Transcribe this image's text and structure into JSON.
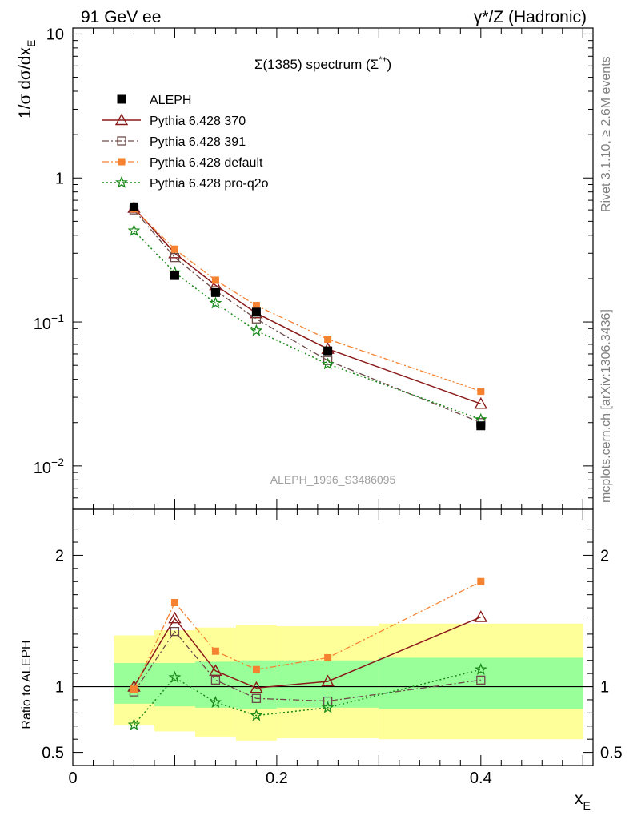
{
  "header": {
    "left": "91 GeV ee",
    "right": "γ*/Z (Hadronic)"
  },
  "side_texts": {
    "rivet": "Rivet 3.1.10, ≥ 2.6M events",
    "mcplots": "mcplots.cern.ch [arXiv:1306.3436]"
  },
  "colors": {
    "aleph": "#000000",
    "p370": "#8b1a1a",
    "p391": "#6e4a4a",
    "pdefault": "#f58231",
    "pq2o": "#1a8a1a",
    "band_inner": "#99ff99",
    "band_outer": "#ffff99"
  },
  "chart_data": [
    {
      "type": "line",
      "title": "Σ(1385) spectrum (Σ*±)",
      "title_main": "Σ(1385) spectrum (Σ",
      "title_sup": "*±",
      "title_close": ")",
      "ylabel": "1/σ dσ/dx_E",
      "ylabel_main": "1/σ dσ/dx",
      "ylabel_sub": "E",
      "yscale": "log",
      "xlim": [
        0,
        0.51
      ],
      "ylim": [
        0.005,
        11
      ],
      "yticks": [
        {
          "value": 10,
          "label": "10"
        },
        {
          "value": 1,
          "label": "1"
        },
        {
          "value": 0.1,
          "base": "10",
          "exp": "−1"
        },
        {
          "value": 0.01,
          "base": "10",
          "exp": "−2"
        }
      ],
      "watermark": "ALEPH_1996_S3486095",
      "legend_position": "top-left",
      "x": [
        0.06,
        0.1,
        0.14,
        0.18,
        0.25,
        0.4
      ],
      "series": [
        {
          "name": "ALEPH",
          "values": [
            0.63,
            0.21,
            0.16,
            0.117,
            0.063,
            0.019
          ],
          "style": "data"
        },
        {
          "name": "Pythia 6.428 370",
          "values": [
            0.62,
            0.3,
            0.18,
            0.115,
            0.065,
            0.027
          ],
          "style": "p370"
        },
        {
          "name": "Pythia 6.428 391",
          "values": [
            0.6,
            0.28,
            0.165,
            0.105,
            0.054,
            0.02
          ],
          "style": "p391"
        },
        {
          "name": "Pythia 6.428 default",
          "values": [
            0.61,
            0.32,
            0.195,
            0.13,
            0.076,
            0.033
          ],
          "style": "pdefault"
        },
        {
          "name": "Pythia 6.428 pro-q2o",
          "values": [
            0.43,
            0.22,
            0.135,
            0.087,
            0.051,
            0.021
          ],
          "style": "pq2o"
        }
      ]
    },
    {
      "type": "line",
      "ylabel": "Ratio to ALEPH",
      "xlabel": "x_E",
      "xlabel_main": "x",
      "xlabel_sub": "E",
      "ylim": [
        0.4,
        2.35
      ],
      "yticks": [
        {
          "value": 2,
          "label": "2"
        },
        {
          "value": 1,
          "label": "1"
        },
        {
          "value": 0.5,
          "label": "0.5"
        }
      ],
      "xticks": [
        {
          "value": 0,
          "label": "0"
        },
        {
          "value": 0.2,
          "label": "0.2"
        },
        {
          "value": 0.4,
          "label": "0.4"
        }
      ],
      "reference_line": 1,
      "bins": [
        {
          "lo": 0.04,
          "hi": 0.08,
          "inner": [
            0.87,
            1.18
          ],
          "outer": [
            0.71,
            1.39
          ]
        },
        {
          "lo": 0.08,
          "hi": 0.12,
          "inner": [
            0.85,
            1.18
          ],
          "outer": [
            0.66,
            1.43
          ]
        },
        {
          "lo": 0.12,
          "hi": 0.16,
          "inner": [
            0.84,
            1.19
          ],
          "outer": [
            0.62,
            1.45
          ]
        },
        {
          "lo": 0.16,
          "hi": 0.2,
          "inner": [
            0.83,
            1.2
          ],
          "outer": [
            0.59,
            1.47
          ]
        },
        {
          "lo": 0.2,
          "hi": 0.3,
          "inner": [
            0.84,
            1.2
          ],
          "outer": [
            0.61,
            1.46
          ]
        },
        {
          "lo": 0.3,
          "hi": 0.5,
          "inner": [
            0.83,
            1.22
          ],
          "outer": [
            0.6,
            1.48
          ]
        }
      ],
      "x": [
        0.06,
        0.1,
        0.14,
        0.18,
        0.25,
        0.4
      ],
      "series": [
        {
          "name": "Pythia 6.428 370",
          "values": [
            1.0,
            1.52,
            1.12,
            0.99,
            1.04,
            1.53
          ],
          "style": "p370"
        },
        {
          "name": "Pythia 6.428 391",
          "values": [
            0.96,
            1.42,
            1.05,
            0.91,
            0.89,
            1.05
          ],
          "style": "p391"
        },
        {
          "name": "Pythia 6.428 default",
          "values": [
            0.98,
            1.64,
            1.27,
            1.13,
            1.22,
            1.8
          ],
          "style": "pdefault"
        },
        {
          "name": "Pythia 6.428 pro-q2o",
          "values": [
            0.71,
            1.07,
            0.88,
            0.78,
            0.84,
            1.13
          ],
          "style": "pq2o"
        }
      ]
    }
  ]
}
